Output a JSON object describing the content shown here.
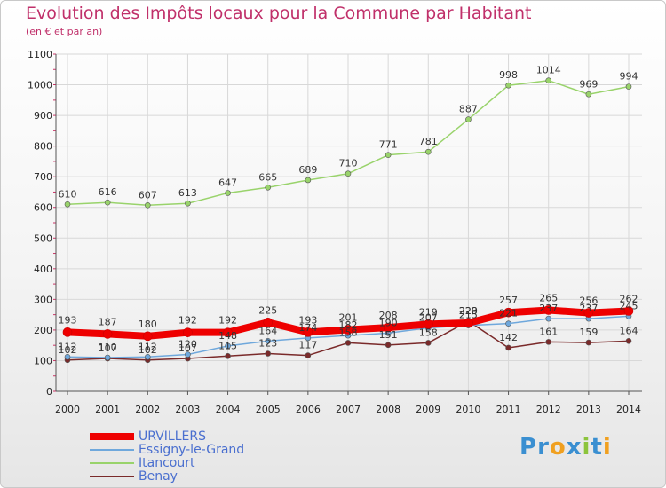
{
  "title": "Evolution des Impôts locaux pour la Commune par Habitant",
  "subtitle": "(en € et par an)",
  "logo": {
    "text": "Proxiti",
    "letters": [
      "P",
      "r",
      "o",
      "x",
      "i",
      "t",
      "i"
    ],
    "colors": [
      "#3a8fd1",
      "#3a8fd1",
      "#f0a020",
      "#3a8fd1",
      "#8cc43c",
      "#3a8fd1",
      "#f0a020"
    ]
  },
  "chart_data": {
    "type": "line",
    "x": [
      "2000",
      "2001",
      "2002",
      "2003",
      "2004",
      "2005",
      "2006",
      "2007",
      "2008",
      "2009",
      "2010",
      "2011",
      "2012",
      "2013",
      "2014"
    ],
    "ylim": [
      0,
      1100
    ],
    "yticks": [
      0,
      100,
      200,
      300,
      400,
      500,
      600,
      700,
      800,
      900,
      1000,
      1100
    ],
    "grid": true,
    "legend_position": "bottom-left",
    "series": [
      {
        "name": "URVILLERS",
        "color": "#ee0000",
        "width": 8,
        "values": [
          193,
          187,
          180,
          192,
          192,
          225,
          193,
          201,
          208,
          219,
          223,
          257,
          265,
          256,
          262
        ],
        "labels": [
          "193",
          "187",
          "180",
          "192",
          "192",
          "225",
          "193",
          "201",
          "208",
          "219",
          "223",
          "257",
          "265",
          "256",
          "262"
        ]
      },
      {
        "name": "Essigny-le-Grand",
        "color": "#6fa8dc",
        "width": 1.5,
        "values": [
          112,
          110,
          112,
          120,
          148,
          164,
          174,
          182,
          190,
          207,
          215,
          221,
          237,
          237,
          245
        ],
        "labels": [
          "112",
          "110",
          "112",
          "120",
          "148",
          "164",
          "174",
          "182",
          "190",
          "207",
          "215",
          "221",
          "237",
          "237",
          "245"
        ]
      },
      {
        "name": "Itancourt",
        "color": "#99d36b",
        "width": 1.5,
        "values": [
          610,
          616,
          607,
          613,
          647,
          665,
          689,
          710,
          771,
          781,
          887,
          998,
          1014,
          969,
          994
        ],
        "labels": [
          "610",
          "616",
          "607",
          "613",
          "647",
          "665",
          "689",
          "710",
          "771",
          "781",
          "887",
          "998",
          "1014",
          "969",
          "994"
        ]
      },
      {
        "name": "Benay",
        "color": "#7a2a2a",
        "width": 1.5,
        "values": [
          102,
          107,
          102,
          107,
          115,
          123,
          117,
          158,
          151,
          158,
          229,
          142,
          161,
          159,
          164
        ],
        "labels": [
          "102",
          "107",
          "102",
          "107",
          "115",
          "123",
          "117",
          "158",
          "151",
          "158",
          "229",
          "142",
          "161",
          "159",
          "164"
        ]
      }
    ]
  }
}
